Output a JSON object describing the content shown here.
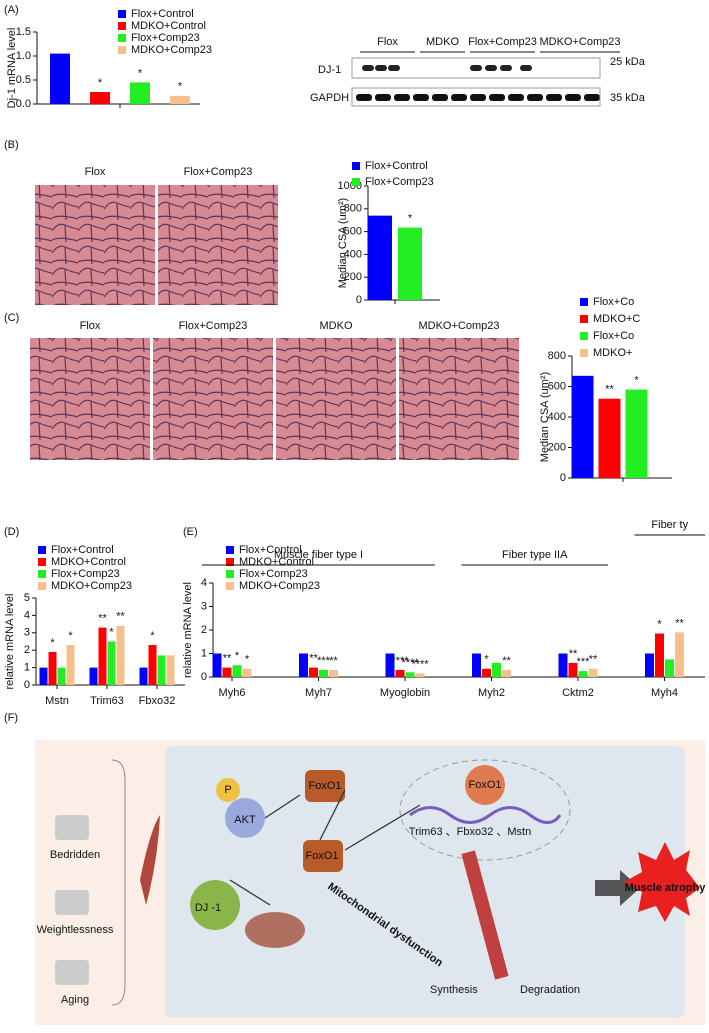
{
  "panels": {
    "a": "(A)",
    "b": "(B)",
    "c": "(C)",
    "d": "(D)",
    "e": "(E)",
    "f": "(F)"
  },
  "blot": {
    "groups": [
      "Flox",
      "MDKO",
      "Flox+Comp23",
      "MDKO+Comp23"
    ],
    "rows": [
      "DJ-1",
      "GAPDH"
    ],
    "sizes": [
      "25 kDa",
      "35 kDa"
    ]
  },
  "histology": {
    "b": [
      "Flox",
      "Flox+Comp23"
    ],
    "c": [
      "Flox",
      "Flox+Comp23",
      "MDKO",
      "MDKO+Comp23"
    ]
  },
  "diagram": {
    "causes": [
      "Bedridden",
      "Weightlessness",
      "Aging"
    ],
    "phospho": "P",
    "akt": "AKT",
    "foxo1": "FoxO1",
    "dj1": "DJ -1",
    "genes": "Trim63 、Fbxo32 、Mstn",
    "mito": "Mitochondrial dysfunction",
    "synthesis": "Synthesis",
    "degradation": "Degradation",
    "outcome": "Muscle atrophy"
  },
  "chart_data": [
    {
      "type": "bar",
      "ylabel": "Dj-1 mRNA level",
      "categories": [
        null
      ],
      "series": [
        {
          "name": "Flox+Control",
          "color": "#0000ff",
          "values": [
            1.05
          ]
        },
        {
          "name": "MDKO+Control",
          "color": "#ff0000",
          "values": [
            0.25
          ],
          "sig": [
            "*"
          ]
        },
        {
          "name": "Flox+Comp23",
          "color": "#22ee22",
          "values": [
            0.45
          ],
          "sig": [
            "*"
          ]
        },
        {
          "name": "MDKO+Comp23",
          "color": "#f5c08a",
          "values": [
            0.17
          ],
          "sig": [
            "*"
          ]
        }
      ],
      "ylim": [
        0,
        1.5
      ],
      "yticks": [
        {
          "value": 0,
          "label": "0.0"
        },
        {
          "value": 0.5,
          "label": "0.5"
        },
        {
          "value": 1,
          "label": "1.0"
        },
        {
          "value": 1.5,
          "label": "1.5"
        }
      ]
    },
    {
      "type": "bar",
      "ylabel": "Median CSA (um²)",
      "categories": [
        null
      ],
      "series": [
        {
          "name": "Flox+Control",
          "color": "#0000ff",
          "values": [
            740
          ]
        },
        {
          "name": "Flox+Comp23",
          "color": "#22ee22",
          "values": [
            635
          ],
          "sig": [
            "*"
          ]
        }
      ],
      "ylim": [
        0,
        1000
      ],
      "yticks": [
        0,
        200,
        400,
        600,
        800,
        1000
      ]
    },
    {
      "type": "bar",
      "ylabel": "Median CSA (um²)",
      "categories": [
        null
      ],
      "series": [
        {
          "name": "Flox+Co",
          "color": "#0000ff",
          "values": [
            670
          ]
        },
        {
          "name": "MDKO+C",
          "color": "#ff0000",
          "values": [
            520
          ],
          "sig": [
            "**"
          ]
        },
        {
          "name": "Flox+Co",
          "color": "#22ee22",
          "values": [
            580
          ],
          "sig": [
            "*"
          ]
        },
        {
          "name": "MDKO+",
          "color": "#f5c08a",
          "values": [
            null
          ]
        }
      ],
      "ylim": [
        0,
        800
      ],
      "yticks": [
        0,
        200,
        400,
        600,
        800
      ]
    },
    {
      "type": "bar",
      "ylabel": "relative mRNA level",
      "categories": [
        "Mstn",
        "Trim63",
        "Fbxo32"
      ],
      "series": [
        {
          "name": "Flox+Control",
          "color": "#0000ff",
          "values": [
            1,
            1,
            1
          ]
        },
        {
          "name": "MDKO+Control",
          "color": "#ff0000",
          "values": [
            1.9,
            3.3,
            2.3
          ],
          "sig": [
            "*",
            "**",
            "*"
          ]
        },
        {
          "name": "Flox+Comp23",
          "color": "#22ee22",
          "values": [
            1.0,
            2.5,
            1.7
          ],
          "sig": [
            null,
            "*",
            null
          ]
        },
        {
          "name": "MDKO+Comp23",
          "color": "#f5c08a",
          "values": [
            2.3,
            3.4,
            1.7
          ],
          "sig": [
            "*",
            "**",
            null
          ]
        }
      ],
      "ylim": [
        0,
        5
      ],
      "yticks": [
        0,
        1,
        2,
        3,
        4,
        5
      ]
    },
    {
      "type": "bar",
      "ylabel": "relative mRNA level",
      "categories": [
        "Myh6",
        "Myh7",
        "Myoglobin",
        "Myh2",
        "Cktm2",
        "Myh4"
      ],
      "groups": [
        "Muscle fiber type I",
        "Fiber type IIA",
        "Fiber ty"
      ],
      "series": [
        {
          "name": "Flox+Control",
          "color": "#0000ff",
          "values": [
            1,
            1,
            1,
            1,
            1,
            1
          ]
        },
        {
          "name": "MDKO+Control",
          "color": "#ff0000",
          "values": [
            0.4,
            0.4,
            0.3,
            0.35,
            0.6,
            1.85
          ],
          "sig": [
            "**",
            "**",
            "****",
            "*",
            "**",
            "*"
          ]
        },
        {
          "name": "Flox+Comp23",
          "color": "#22ee22",
          "values": [
            0.5,
            0.3,
            0.2,
            0.6,
            0.25,
            0.75
          ],
          "sig": [
            "*",
            "***",
            "****",
            null,
            "***",
            null
          ]
        },
        {
          "name": "MDKO+Comp23",
          "color": "#f5c08a",
          "values": [
            0.35,
            0.3,
            0.15,
            0.3,
            0.35,
            1.9
          ],
          "sig": [
            "*",
            "**",
            "****",
            "**",
            "**",
            "**"
          ]
        }
      ],
      "ylim": [
        0,
        4
      ],
      "yticks": [
        0,
        1,
        2,
        3,
        4
      ]
    }
  ]
}
